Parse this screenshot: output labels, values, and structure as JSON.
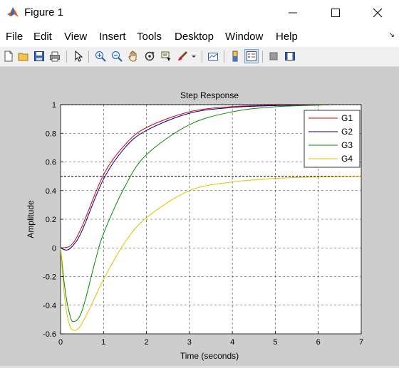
{
  "window": {
    "title": "Figure 1"
  },
  "menu": [
    "File",
    "Edit",
    "View",
    "Insert",
    "Tools",
    "Desktop",
    "Window",
    "Help"
  ],
  "toolbar": {
    "buttons": [
      "new-figure",
      "open-file",
      "save-figure",
      "print-figure",
      "edit-plot",
      "zoom-in",
      "zoom-out",
      "pan",
      "rotate-3d",
      "data-cursor",
      "brush",
      "link-plot",
      "insert-colorbar",
      "insert-legend",
      "hide-plot-tools",
      "show-plot-tools"
    ]
  },
  "colors": {
    "G1": "#d40000",
    "G2": "#00008a",
    "G3": "#008a00",
    "G4": "#e0c000",
    "canvas": "#cdcdcd"
  },
  "chart_data": {
    "type": "line",
    "title": "Step Response",
    "xlabel": "Time (seconds)",
    "ylabel": "Amplitude",
    "xlim": [
      0,
      7
    ],
    "ylim": [
      -0.6,
      1
    ],
    "xticks": [
      "0",
      "1",
      "2",
      "3",
      "4",
      "5",
      "6",
      "7"
    ],
    "yticks": [
      "-0.6",
      "-0.4",
      "-0.2",
      "0",
      "0.2",
      "0.4",
      "0.6",
      "0.8",
      "1"
    ],
    "grid": true,
    "legend_position": "top-right",
    "reference_lines": [
      1,
      0.5
    ],
    "series": [
      {
        "name": "G1",
        "x": [
          0,
          0.25,
          0.5,
          1,
          1.5,
          2,
          3,
          4,
          5,
          6.25
        ],
        "y": [
          0,
          0.02,
          0.15,
          0.51,
          0.72,
          0.84,
          0.95,
          0.986,
          0.996,
          1.0
        ]
      },
      {
        "name": "G2",
        "x": [
          0,
          0.15,
          0.3,
          0.5,
          1,
          1.5,
          2,
          3,
          4,
          5,
          6.25
        ],
        "y": [
          0,
          -0.015,
          0.02,
          0.12,
          0.48,
          0.7,
          0.82,
          0.94,
          0.98,
          0.993,
          0.999
        ]
      },
      {
        "name": "G3",
        "x": [
          0,
          0.1,
          0.2,
          0.3,
          0.5,
          0.8,
          1,
          1.5,
          2,
          3,
          4,
          5,
          6.2
        ],
        "y": [
          0,
          -0.28,
          -0.45,
          -0.515,
          -0.44,
          -0.1,
          0.1,
          0.43,
          0.65,
          0.86,
          0.95,
          0.985,
          0.998
        ]
      },
      {
        "name": "G4",
        "x": [
          0,
          0.1,
          0.2,
          0.3,
          0.45,
          0.7,
          1,
          1.5,
          2,
          3,
          4,
          5,
          6,
          7
        ],
        "y": [
          0,
          -0.36,
          -0.53,
          -0.575,
          -0.55,
          -0.41,
          -0.22,
          0.04,
          0.21,
          0.4,
          0.46,
          0.485,
          0.495,
          0.498
        ]
      }
    ]
  }
}
